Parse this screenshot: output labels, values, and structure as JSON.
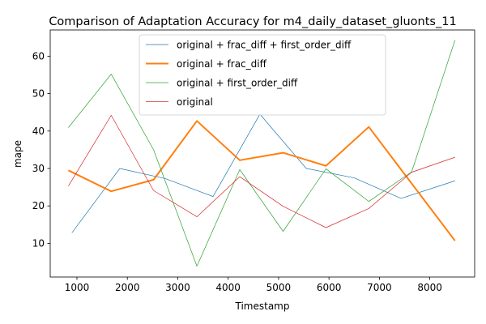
{
  "chart_data": {
    "type": "line",
    "title": "Comparison of Adaptation Accuracy for m4_daily_dataset_gluonts_11",
    "xlabel": "Timestamp",
    "ylabel": "mape",
    "xlim": [
      470,
      8890
    ],
    "ylim": [
      1.0,
      67.0
    ],
    "xticks": [
      1000,
      2000,
      3000,
      4000,
      5000,
      6000,
      7000,
      8000
    ],
    "yticks": [
      10,
      20,
      30,
      40,
      50,
      60
    ],
    "legend_position": "top-center",
    "grid": false,
    "series": [
      {
        "name": "original + frac_diff + first_order_diff",
        "color": "#1f77b4",
        "line_width": 0.7,
        "x": [
          900,
          1850,
          2750,
          3700,
          4630,
          5550,
          6500,
          7430,
          8500
        ],
        "y": [
          12.8,
          30.0,
          27.3,
          22.5,
          44.5,
          30.0,
          27.5,
          22.0,
          26.7
        ]
      },
      {
        "name": "original + frac_diff",
        "color": "#ff7f0e",
        "line_width": 2.0,
        "x": [
          830,
          1680,
          2520,
          3380,
          4230,
          5090,
          5940,
          6790,
          8500
        ],
        "y": [
          29.5,
          23.9,
          27.0,
          42.7,
          32.2,
          34.2,
          30.7,
          41.1,
          10.7
        ]
      },
      {
        "name": "original + first_order_diff",
        "color": "#2ca02c",
        "line_width": 0.7,
        "x": [
          830,
          1680,
          2520,
          3380,
          4230,
          5090,
          5940,
          6790,
          7640,
          8500
        ],
        "y": [
          40.9,
          55.2,
          35.0,
          3.9,
          29.7,
          13.2,
          29.9,
          21.2,
          29.1,
          64.3
        ]
      },
      {
        "name": "original",
        "color": "#d62728",
        "line_width": 0.7,
        "x": [
          830,
          1680,
          2520,
          3380,
          4230,
          5090,
          5940,
          6790,
          7640,
          8500
        ],
        "y": [
          25.3,
          44.2,
          24.1,
          17.1,
          27.8,
          19.9,
          14.2,
          19.3,
          29.0,
          33.0
        ]
      }
    ]
  }
}
